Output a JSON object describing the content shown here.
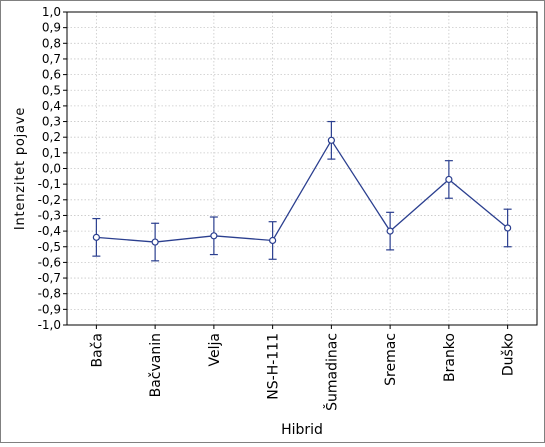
{
  "chart_data": {
    "type": "line",
    "xlabel": "Hibrid",
    "ylabel": "Intenzitet pojave",
    "ylim": [
      -1.0,
      1.0
    ],
    "yticks": [
      "1,0",
      "0,9",
      "0,8",
      "0,7",
      "0,6",
      "0,5",
      "0,4",
      "0,3",
      "0,2",
      "0,1",
      "0,0",
      "-0,1",
      "-0,2",
      "-0,3",
      "-0,4",
      "-0,5",
      "-0,6",
      "-0,7",
      "-0,8",
      "-0,9",
      "-1,0"
    ],
    "categories": [
      "Bača",
      "Bačvanin",
      "Velja",
      "NS-H-111",
      "Šumadinac",
      "Sremac",
      "Branko",
      "Duško"
    ],
    "series": [
      {
        "values": [
          -0.44,
          -0.47,
          -0.43,
          -0.46,
          0.18,
          -0.4,
          -0.07,
          -0.38
        ],
        "error_low": [
          -0.56,
          -0.59,
          -0.55,
          -0.58,
          0.06,
          -0.52,
          -0.19,
          -0.5
        ],
        "error_high": [
          -0.32,
          -0.35,
          -0.31,
          -0.34,
          0.3,
          -0.28,
          0.05,
          -0.26
        ],
        "color": "#2b3f8f"
      }
    ],
    "grid": true,
    "legend": "none"
  }
}
